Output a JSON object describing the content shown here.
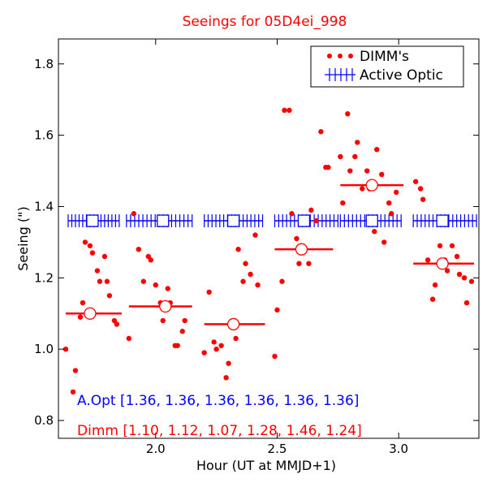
{
  "chart_data": {
    "type": "scatter",
    "title": "Seeings for 05D4ei_998",
    "xlabel": "Hour (UT at MMJD+1)",
    "ylabel": "Seeing (\")",
    "xlim": [
      1.6,
      3.33
    ],
    "ylim": [
      0.75,
      1.87
    ],
    "xticks": [
      2.0,
      2.5,
      3.0
    ],
    "xtick_labels": [
      "2.0",
      "2.5",
      "3.0"
    ],
    "yticks": [
      0.8,
      1.0,
      1.2,
      1.4,
      1.6,
      1.8
    ],
    "ytick_labels": [
      "0.8",
      "1.0",
      "1.2",
      "1.4",
      "1.6",
      "1.8"
    ],
    "legend": {
      "placement": "top-right",
      "entries": [
        {
          "label": "DIMM's",
          "color": "#ff0000",
          "marker": "dot"
        },
        {
          "label": "Active Optic",
          "color": "#0000ff",
          "marker": "plus"
        }
      ]
    },
    "series": [
      {
        "name": "DIMM's",
        "color": "#ff0000",
        "points": [
          [
            1.63,
            1.0
          ],
          [
            1.66,
            0.88
          ],
          [
            1.67,
            0.94
          ],
          [
            1.69,
            1.09
          ],
          [
            1.7,
            1.13
          ],
          [
            1.71,
            1.3
          ],
          [
            1.73,
            1.29
          ],
          [
            1.74,
            1.27
          ],
          [
            1.76,
            1.22
          ],
          [
            1.77,
            1.19
          ],
          [
            1.79,
            1.26
          ],
          [
            1.8,
            1.19
          ],
          [
            1.81,
            1.15
          ],
          [
            1.83,
            1.08
          ],
          [
            1.84,
            1.07
          ],
          [
            1.89,
            1.03
          ],
          [
            1.91,
            1.38
          ],
          [
            1.93,
            1.28
          ],
          [
            1.95,
            1.19
          ],
          [
            1.97,
            1.26
          ],
          [
            1.98,
            1.25
          ],
          [
            2.0,
            1.18
          ],
          [
            2.02,
            1.13
          ],
          [
            2.03,
            1.08
          ],
          [
            2.05,
            1.17
          ],
          [
            2.06,
            1.13
          ],
          [
            2.08,
            1.01
          ],
          [
            2.09,
            1.01
          ],
          [
            2.11,
            1.05
          ],
          [
            2.12,
            1.08
          ],
          [
            2.2,
            0.99
          ],
          [
            2.22,
            1.16
          ],
          [
            2.24,
            1.02
          ],
          [
            2.25,
            1.0
          ],
          [
            2.27,
            1.01
          ],
          [
            2.29,
            0.92
          ],
          [
            2.3,
            0.96
          ],
          [
            2.33,
            1.03
          ],
          [
            2.34,
            1.28
          ],
          [
            2.36,
            1.19
          ],
          [
            2.37,
            1.24
          ],
          [
            2.39,
            1.21
          ],
          [
            2.41,
            1.32
          ],
          [
            2.42,
            1.18
          ],
          [
            2.49,
            0.98
          ],
          [
            2.5,
            1.11
          ],
          [
            2.52,
            1.19
          ],
          [
            2.53,
            1.67
          ],
          [
            2.55,
            1.67
          ],
          [
            2.56,
            1.38
          ],
          [
            2.58,
            1.31
          ],
          [
            2.59,
            1.24
          ],
          [
            2.61,
            1.35
          ],
          [
            2.63,
            1.24
          ],
          [
            2.64,
            1.39
          ],
          [
            2.66,
            1.36
          ],
          [
            2.68,
            1.61
          ],
          [
            2.7,
            1.51
          ],
          [
            2.71,
            1.51
          ],
          [
            2.76,
            1.54
          ],
          [
            2.77,
            1.41
          ],
          [
            2.79,
            1.66
          ],
          [
            2.8,
            1.5
          ],
          [
            2.82,
            1.54
          ],
          [
            2.83,
            1.58
          ],
          [
            2.85,
            1.45
          ],
          [
            2.87,
            1.5
          ],
          [
            2.88,
            1.45
          ],
          [
            2.9,
            1.33
          ],
          [
            2.91,
            1.56
          ],
          [
            2.93,
            1.49
          ],
          [
            2.94,
            1.3
          ],
          [
            2.96,
            1.41
          ],
          [
            2.97,
            1.38
          ],
          [
            2.99,
            1.44
          ],
          [
            3.07,
            1.47
          ],
          [
            3.09,
            1.45
          ],
          [
            3.1,
            1.42
          ],
          [
            3.12,
            1.25
          ],
          [
            3.14,
            1.14
          ],
          [
            3.15,
            1.18
          ],
          [
            3.17,
            1.29
          ],
          [
            3.19,
            1.25
          ],
          [
            3.2,
            1.22
          ],
          [
            3.22,
            1.29
          ],
          [
            3.24,
            1.26
          ],
          [
            3.25,
            1.21
          ],
          [
            3.27,
            1.2
          ],
          [
            3.28,
            1.13
          ],
          [
            3.3,
            1.19
          ]
        ]
      },
      {
        "name": "Active Optic",
        "color": "#0000ff",
        "plus_marks": [
          {
            "x_from": 1.64,
            "x_to": 1.85,
            "y": 1.36,
            "count": 15
          },
          {
            "x_from": 1.88,
            "x_to": 2.15,
            "y": 1.36,
            "count": 17
          },
          {
            "x_from": 2.2,
            "x_to": 2.44,
            "y": 1.36,
            "count": 16
          },
          {
            "x_from": 2.49,
            "x_to": 2.75,
            "y": 1.36,
            "count": 17
          },
          {
            "x_from": 2.76,
            "x_to": 3.01,
            "y": 1.36,
            "count": 16
          },
          {
            "x_from": 3.06,
            "x_to": 3.32,
            "y": 1.36,
            "count": 17
          }
        ]
      }
    ],
    "bin_means": {
      "dimm": [
        {
          "x": 1.73,
          "y": 1.1,
          "x_from": 1.63,
          "x_to": 1.86
        },
        {
          "x": 2.04,
          "y": 1.12,
          "x_from": 1.89,
          "x_to": 2.15
        },
        {
          "x": 2.32,
          "y": 1.07,
          "x_from": 2.2,
          "x_to": 2.45
        },
        {
          "x": 2.6,
          "y": 1.28,
          "x_from": 2.49,
          "x_to": 2.73
        },
        {
          "x": 2.89,
          "y": 1.46,
          "x_from": 2.76,
          "x_to": 3.02
        },
        {
          "x": 3.18,
          "y": 1.24,
          "x_from": 3.06,
          "x_to": 3.31
        }
      ],
      "active_optic": [
        {
          "x": 1.74,
          "y": 1.36
        },
        {
          "x": 2.03,
          "y": 1.36
        },
        {
          "x": 2.32,
          "y": 1.36
        },
        {
          "x": 2.61,
          "y": 1.36
        },
        {
          "x": 2.89,
          "y": 1.36
        },
        {
          "x": 3.18,
          "y": 1.36
        }
      ]
    },
    "annotations": [
      {
        "text": "A.Opt [1.36, 1.36, 1.36, 1.36, 1.36, 1.36]",
        "color": "#0000ff"
      },
      {
        "text": "Dimm [1.10, 1.12, 1.07, 1.28, 1.46, 1.24]",
        "color": "#ff0000"
      }
    ]
  }
}
